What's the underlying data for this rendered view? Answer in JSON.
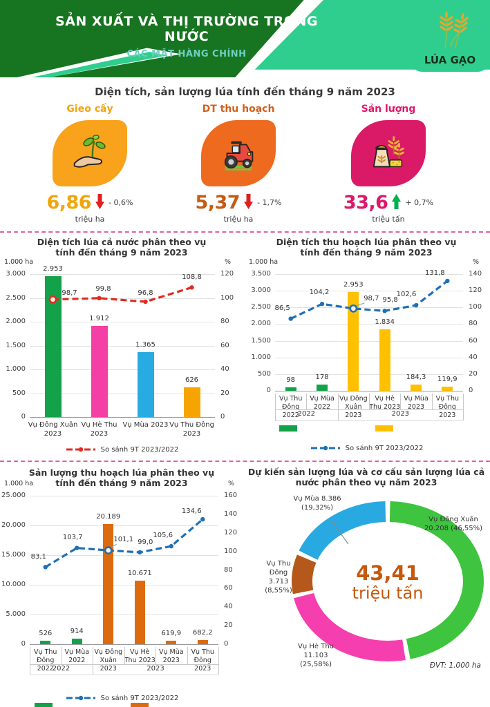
{
  "header": {
    "title": "SẢN XUẤT VÀ THỊ TRƯỜNG TRONG NƯỚC",
    "subtitle": "CÁC MẶT HÀNG CHÍNH",
    "badge": "LÚA GẠO",
    "colors": {
      "dark_green": "#177420",
      "emerald": "#2FCE8E"
    }
  },
  "summary": {
    "title": "Diện tích, sản lượng lúa tính đến tháng 9 năm 2023",
    "cards": [
      {
        "label": "Gieo cấy",
        "icon": "seedling-in-hand-icon",
        "card_color": "#F9A21B",
        "value": "6,86",
        "unit": "triệu ha",
        "change": "- 0,6%",
        "direction": "down",
        "value_color": "#F2A50C",
        "arrow_color": "#E02020"
      },
      {
        "label": "DT thu hoạch",
        "icon": "tractor-icon",
        "card_color": "#ED6A1F",
        "value": "5,37",
        "unit": "triệu ha",
        "change": "- 1,7%",
        "direction": "down",
        "value_color": "#C55A11",
        "arrow_color": "#E02020"
      },
      {
        "label": "Sản lượng",
        "icon": "grain-sack-icon",
        "card_color": "#DB1A67",
        "value": "33,6",
        "unit": "triệu tấn",
        "change": "+ 0,7%",
        "direction": "up",
        "value_color": "#DE1768",
        "arrow_color": "#00B050"
      }
    ]
  },
  "chart_data": [
    {
      "type": "bar",
      "title": "Diện tích lúa cả nước phân theo vụ",
      "title2": "tính đến tháng 9 năm 2023",
      "left_axis": {
        "label": "1.000 ha",
        "max": 3000,
        "ticks": [
          "3.000",
          "2.500",
          "2.000",
          "1.500",
          "1.000",
          "500",
          "0"
        ]
      },
      "right_axis": {
        "label": "%",
        "max": 120,
        "ticks": [
          "120",
          "100",
          "80",
          "60",
          "40",
          "20",
          "0"
        ]
      },
      "categories": [
        "Vụ Đông Xuân 2023",
        "Vụ Hè Thu 2023",
        "Vụ Mùa 2023",
        "Vụ Thu Đông 2023"
      ],
      "bars": {
        "values": [
          2953,
          1912,
          1365,
          626
        ],
        "labels": [
          "2.953",
          "1.912",
          "1.365",
          "626"
        ],
        "colors": [
          "#13A24A",
          "#F43FA5",
          "#29ABE2",
          "#F7A400"
        ]
      },
      "line": {
        "name": "So sánh 9T 2023/2022",
        "color": "#E02B20",
        "values": [
          98.7,
          99.8,
          96.8,
          108.8
        ],
        "labels": [
          "98,7",
          "99,8",
          "96,8",
          "108,8"
        ]
      },
      "legend": "So sánh 9T 2023/2022",
      "legend_position": "bottom",
      "grid": true
    },
    {
      "type": "bar",
      "title": "Diện tích thu hoạch lúa phân theo vụ",
      "title2": "tính đến tháng 9 năm 2023",
      "left_axis": {
        "label": "1.000 ha",
        "max": 3500,
        "ticks": [
          "3.500",
          "3.000",
          "2.500",
          "2.000",
          "1.500",
          "1.000",
          "500",
          "0"
        ]
      },
      "right_axis": {
        "label": "%",
        "max": 140,
        "ticks": [
          "140",
          "120",
          "100",
          "80",
          "60",
          "40",
          "20",
          "0"
        ]
      },
      "categories": [
        "Vụ Thu Đông 2022",
        "Vụ Mùa 2022",
        "Vụ Đông Xuân 2023",
        "Vụ Hè Thu 2023",
        "Vụ Mùa 2023",
        "Vụ Thu Đông 2023"
      ],
      "groups": [
        {
          "label": "2022",
          "span": 2
        },
        {
          "label": "2023",
          "span": 4
        }
      ],
      "bars": {
        "values": [
          98,
          178,
          2953,
          1834,
          184.3,
          119.9
        ],
        "labels": [
          "98",
          "178",
          "2.953",
          "1.834",
          "184,3",
          "119,9"
        ],
        "colors": [
          "#13A24A",
          "#13A24A",
          "#FFC000",
          "#FFC000",
          "#FFC000",
          "#FFC000"
        ]
      },
      "line": {
        "name": "So sánh 9T 2023/2022",
        "color": "#1F6FB5",
        "values": [
          86.5,
          104.2,
          98.7,
          95.8,
          102.6,
          131.8
        ],
        "labels": [
          "86,5",
          "104,2",
          "98,7",
          "95,8",
          "102,6",
          "131,8"
        ]
      },
      "legend": "So sánh 9T 2023/2022",
      "legend_swatches": [
        "#13A24A",
        "#FFC000"
      ],
      "legend_position": "bottom",
      "grid": true
    },
    {
      "type": "bar",
      "title": "Sản lượng thu hoạch lúa phân theo vụ",
      "title2": "tính đến tháng 9 năm 2023",
      "left_axis": {
        "label": "1.000 ha",
        "max": 25000,
        "ticks": [
          "25.000",
          "20.000",
          "15.000",
          "10.000",
          "5.000",
          "0"
        ]
      },
      "right_axis": {
        "label": "%",
        "max": 160,
        "ticks": [
          "160",
          "140",
          "120",
          "100",
          "80",
          "60",
          "40",
          "20",
          "0"
        ]
      },
      "categories": [
        "Vụ Thu Đông 2022",
        "Vụ Mùa 2022",
        "Vụ Đông Xuân 2023",
        "Vụ Hè Thu 2023",
        "Vụ Mùa 2023",
        "Vụ Thu Đông 2023"
      ],
      "groups": [
        {
          "label": "2022",
          "span": 2
        },
        {
          "label": "2023",
          "span": 4
        }
      ],
      "bars": {
        "values": [
          526,
          914,
          20189,
          10671,
          619.9,
          682.2
        ],
        "labels": [
          "526",
          "914",
          "20.189",
          "10.671",
          "619,9",
          "682,2"
        ],
        "colors": [
          "#13A24A",
          "#13A24A",
          "#DD6B0D",
          "#DD6B0D",
          "#DD6B0D",
          "#DD6B0D"
        ]
      },
      "line": {
        "name": "So sánh 9T 2023/2022",
        "color": "#1F6FB5",
        "values": [
          83.1,
          103.7,
          101.1,
          99.0,
          105.6,
          134.6
        ],
        "labels": [
          "83,1",
          "103,7",
          "101,1",
          "99,0",
          "105,6",
          "134,6"
        ]
      },
      "legend": "So sánh 9T 2023/2022",
      "legend_swatches": [
        "#13A24A",
        "#DD6B0D"
      ],
      "legend_position": "bottom",
      "grid": true
    },
    {
      "type": "pie",
      "title": "Dự kiến sản lượng lúa và cơ cấu sản lượng lúa cả",
      "title2": "nước phân theo vụ năm 2023",
      "center": {
        "value": "43,41",
        "unit": "triệu tấn",
        "color": "#C5580F"
      },
      "slices": [
        {
          "name": "Vụ Đông Xuân",
          "value": 20208,
          "pct": 46.55,
          "color": "#3EC43E",
          "label_lines": [
            "Vụ Đông Xuân",
            "20.208 (46,55%)"
          ]
        },
        {
          "name": "Vụ Hè Thu",
          "value": 11103,
          "pct": 25.58,
          "color": "#F53FAE",
          "label_lines": [
            "Vụ Hè Thu",
            "11.103",
            "(25,58%)"
          ]
        },
        {
          "name": "Vụ Thu Đông",
          "value": 3713,
          "pct": 8.55,
          "color": "#B4591B",
          "label_lines": [
            "Vụ Thu Đông",
            "3.713",
            "(8,55%)"
          ]
        },
        {
          "name": "Vụ Mùa",
          "value": 8386,
          "pct": 19.32,
          "color": "#29A9E1",
          "label_lines": [
            "Vụ Mùa 8.386",
            "(19,32%)"
          ]
        }
      ],
      "note": "ĐVT: 1.000 ha"
    }
  ]
}
